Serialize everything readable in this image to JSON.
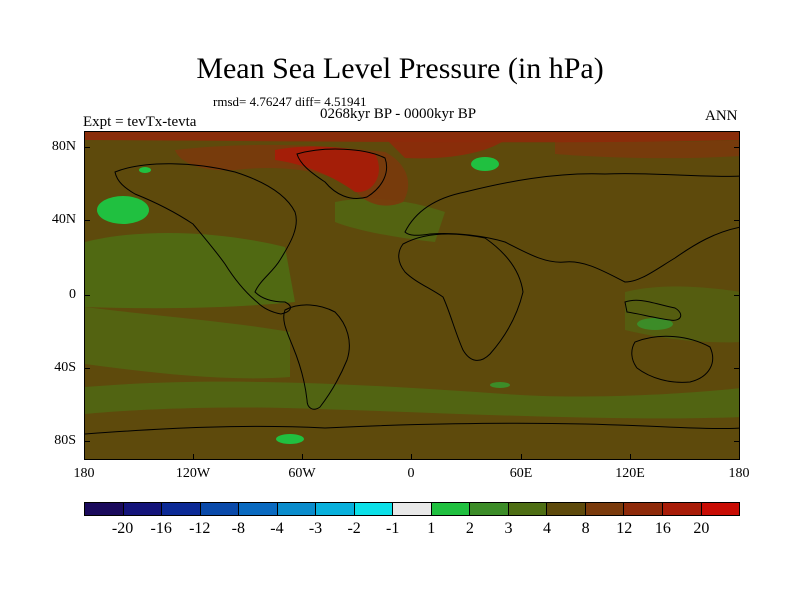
{
  "title": "Mean Sea Level Pressure (in hPa)",
  "stats": "rmsd= 4.76247 diff= 4.51941",
  "period": "0268kyr BP - 0000kyr BP",
  "experiment": "Expt = tevTx-tevta",
  "season": "ANN",
  "map": {
    "projection": "cylindrical-equidistant",
    "lon_range": [
      -180,
      180
    ],
    "lat_range": [
      -90,
      90
    ],
    "y_ticks": [
      "80N",
      "40N",
      "0",
      "40S",
      "80S"
    ],
    "x_ticks": [
      "180",
      "120W",
      "60W",
      "0",
      "60E",
      "120E",
      "180"
    ],
    "background_field_color": "#5e4a0c"
  },
  "colorbar": {
    "labels": [
      "-20",
      "-16",
      "-12",
      "-8",
      "-4",
      "-3",
      "-2",
      "-1",
      "1",
      "2",
      "3",
      "4",
      "8",
      "12",
      "16",
      "20"
    ],
    "colors": [
      "#1a0a5c",
      "#14147a",
      "#0c2a96",
      "#0a4aaa",
      "#0a6ac0",
      "#0a8ccc",
      "#08b0dc",
      "#0ce0e8",
      "#e8e8e8",
      "#20c040",
      "#3c8c28",
      "#4e6e14",
      "#5e4a0c",
      "#7a3a0c",
      "#8e2a0a",
      "#a81c08",
      "#c80c04"
    ]
  }
}
